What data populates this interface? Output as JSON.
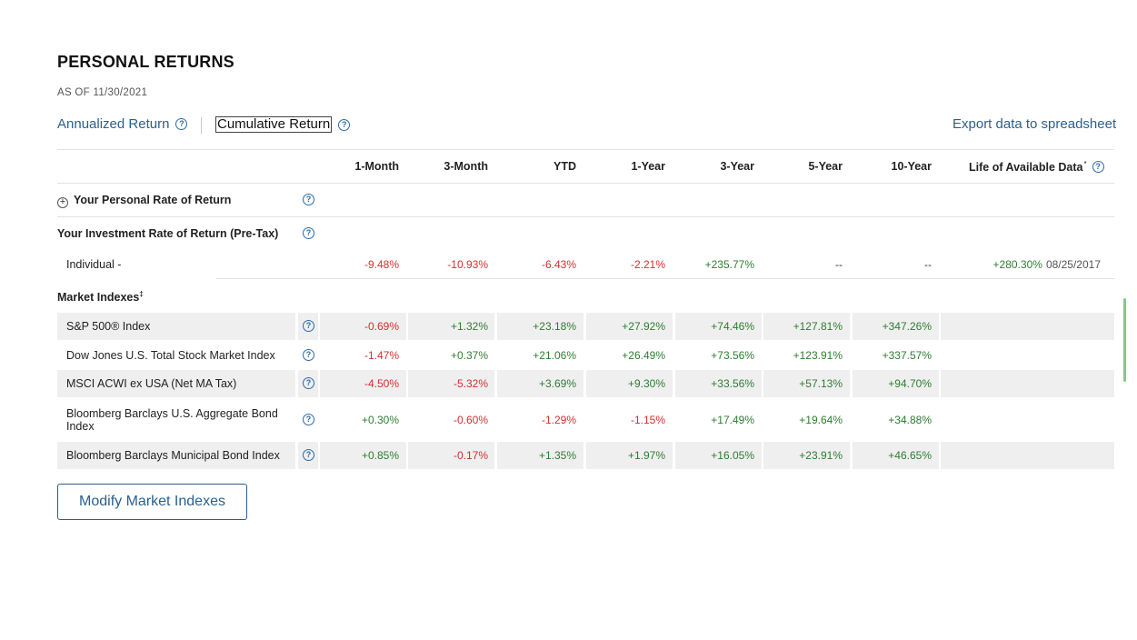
{
  "page": {
    "title": "PERSONAL RETURNS",
    "as_of": "AS OF 11/30/2021"
  },
  "tabs": {
    "annualized": "Annualized Return",
    "cumulative": "Cumulative Return",
    "selected": "Cumulative Return"
  },
  "export_link": "Export data to spreadsheet",
  "table": {
    "columns": [
      "1-Month",
      "3-Month",
      "YTD",
      "1-Year",
      "3-Year",
      "5-Year",
      "10-Year",
      "Life of Available Data"
    ],
    "life_footnote_mark": "*",
    "personal_rate_label": "Your Personal Rate of Return",
    "investment_rate_label": "Your Investment Rate of Return (Pre-Tax)",
    "individual": {
      "label": "Individual -",
      "values": [
        "-9.48%",
        "-10.93%",
        "-6.43%",
        "-2.21%",
        "+235.77%",
        "--",
        "--"
      ],
      "life_value": "+280.30%",
      "life_date": "08/25/2017"
    },
    "market_indexes_label": "Market Indexes",
    "market_indexes_mark": "‡",
    "market_rows": [
      {
        "name": "S&P 500® Index",
        "values": [
          "-0.69%",
          "+1.32%",
          "+23.18%",
          "+27.92%",
          "+74.46%",
          "+127.81%",
          "+347.26%"
        ]
      },
      {
        "name": "Dow Jones U.S. Total Stock Market Index",
        "values": [
          "-1.47%",
          "+0.37%",
          "+21.06%",
          "+26.49%",
          "+73.56%",
          "+123.91%",
          "+337.57%"
        ]
      },
      {
        "name": "MSCI ACWI ex USA (Net MA Tax)",
        "values": [
          "-4.50%",
          "-5.32%",
          "+3.69%",
          "+9.30%",
          "+33.56%",
          "+57.13%",
          "+94.70%"
        ]
      },
      {
        "name": "Bloomberg Barclays U.S. Aggregate Bond Index",
        "values": [
          "+0.30%",
          "-0.60%",
          "-1.29%",
          "-1.15%",
          "+17.49%",
          "+19.64%",
          "+34.88%"
        ]
      },
      {
        "name": "Bloomberg Barclays Municipal Bond Index",
        "values": [
          "+0.85%",
          "-0.17%",
          "+1.35%",
          "+1.97%",
          "+16.05%",
          "+23.91%",
          "+46.65%"
        ]
      }
    ]
  },
  "modify_button": "Modify Market Indexes",
  "colors": {
    "link_blue": "#2b5f8e",
    "negative": "#d32f2f",
    "positive": "#2e7d32",
    "row_shade": "#efefef"
  },
  "icons": {
    "help": "question-circle-icon",
    "expand": "plus-circle-icon"
  }
}
